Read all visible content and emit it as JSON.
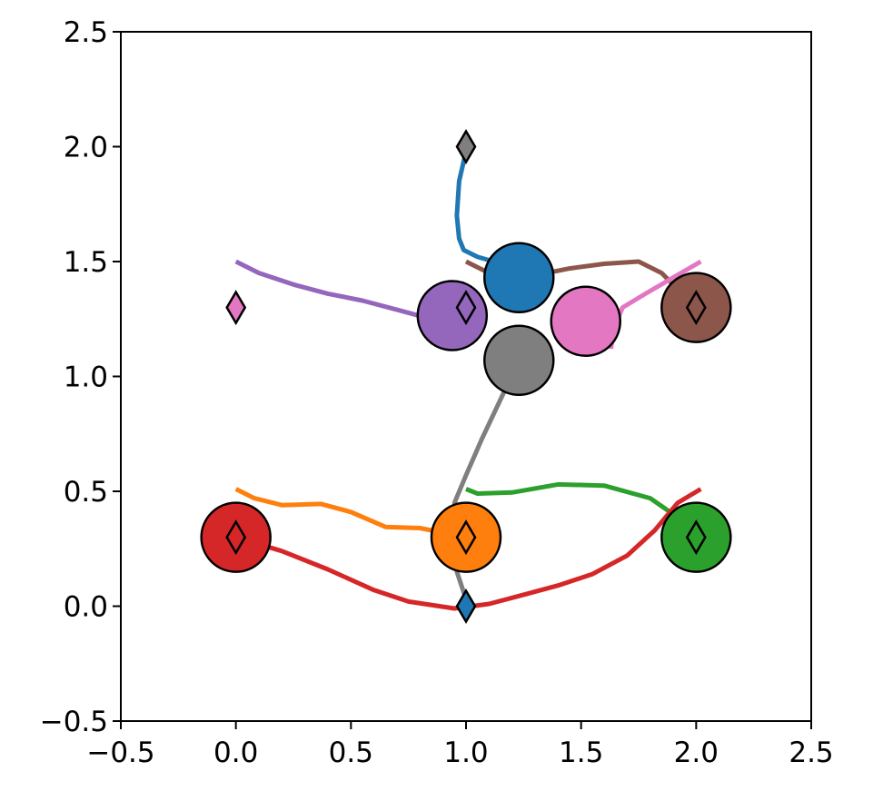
{
  "chart_data": {
    "type": "scatter",
    "title": "",
    "xlabel": "",
    "ylabel": "",
    "xlim": [
      -0.5,
      2.5
    ],
    "ylim": [
      -0.5,
      2.5
    ],
    "x_ticks": [
      -0.5,
      0.0,
      0.5,
      1.0,
      1.5,
      2.0,
      2.5
    ],
    "y_ticks": [
      -0.5,
      0.0,
      0.5,
      1.0,
      1.5,
      2.0,
      2.5
    ],
    "x_tick_labels": [
      "−0.5",
      "0.0",
      "0.5",
      "1.0",
      "1.5",
      "2.0",
      "2.5"
    ],
    "y_tick_labels": [
      "−0.5",
      "0.0",
      "0.5",
      "1.0",
      "1.5",
      "2.0",
      "2.5"
    ],
    "grid": false,
    "agent_radius": 0.15,
    "series": [
      {
        "color": "#1f77b4",
        "trajectory": [
          [
            1.0,
            1.98
          ],
          [
            0.97,
            1.85
          ],
          [
            0.96,
            1.7
          ],
          [
            0.97,
            1.6
          ],
          [
            0.99,
            1.55
          ],
          [
            1.05,
            1.52
          ],
          [
            1.12,
            1.5
          ],
          [
            1.23,
            1.43
          ]
        ],
        "agent": [
          1.23,
          1.43
        ],
        "goal": [
          1.0,
          0.0
        ]
      },
      {
        "color": "#ff7f0e",
        "trajectory": [
          [
            0.0,
            0.51
          ],
          [
            0.08,
            0.47
          ],
          [
            0.2,
            0.44
          ],
          [
            0.37,
            0.445
          ],
          [
            0.5,
            0.41
          ],
          [
            0.65,
            0.345
          ],
          [
            0.8,
            0.34
          ],
          [
            1.0,
            0.3
          ]
        ],
        "agent": [
          1.0,
          0.3
        ],
        "goal": [
          1.0,
          0.3
        ]
      },
      {
        "color": "#2ca02c",
        "trajectory": [
          [
            1.0,
            0.51
          ],
          [
            1.05,
            0.49
          ],
          [
            1.2,
            0.495
          ],
          [
            1.4,
            0.53
          ],
          [
            1.6,
            0.525
          ],
          [
            1.8,
            0.47
          ],
          [
            1.93,
            0.38
          ],
          [
            2.0,
            0.3
          ]
        ],
        "agent": [
          2.0,
          0.3
        ],
        "goal": [
          2.0,
          0.3
        ]
      },
      {
        "color": "#d62728",
        "trajectory": [
          [
            0.0,
            0.3
          ],
          [
            0.2,
            0.24
          ],
          [
            0.4,
            0.16
          ],
          [
            0.6,
            0.07
          ],
          [
            0.75,
            0.02
          ],
          [
            0.95,
            -0.01
          ],
          [
            1.1,
            0.01
          ],
          [
            1.25,
            0.05
          ],
          [
            1.4,
            0.09
          ],
          [
            1.55,
            0.14
          ],
          [
            1.7,
            0.22
          ],
          [
            1.82,
            0.33
          ],
          [
            1.92,
            0.45
          ],
          [
            2.02,
            0.51
          ]
        ],
        "agent": [
          0.0,
          0.3
        ],
        "goal": [
          0.0,
          0.3
        ]
      },
      {
        "color": "#9467bd",
        "trajectory": [
          [
            0.0,
            1.5
          ],
          [
            0.1,
            1.45
          ],
          [
            0.25,
            1.4
          ],
          [
            0.4,
            1.36
          ],
          [
            0.55,
            1.33
          ],
          [
            0.7,
            1.29
          ],
          [
            0.85,
            1.25
          ],
          [
            0.94,
            1.265
          ]
        ],
        "agent": [
          0.94,
          1.265
        ],
        "goal": [
          1.0,
          1.3
        ]
      },
      {
        "color": "#8c564b",
        "trajectory": [
          [
            1.0,
            1.5
          ],
          [
            1.1,
            1.45
          ],
          [
            1.3,
            1.44
          ],
          [
            1.45,
            1.47
          ],
          [
            1.6,
            1.49
          ],
          [
            1.75,
            1.5
          ],
          [
            1.85,
            1.45
          ],
          [
            1.9,
            1.4
          ],
          [
            2.0,
            1.3
          ]
        ],
        "agent": [
          2.0,
          1.3
        ],
        "goal": [
          2.0,
          1.3
        ]
      },
      {
        "color": "#e377c2",
        "trajectory": [
          [
            2.02,
            1.5
          ],
          [
            1.9,
            1.43
          ],
          [
            1.78,
            1.36
          ],
          [
            1.68,
            1.3
          ],
          [
            1.64,
            1.2
          ],
          [
            1.63,
            1.12
          ]
        ],
        "agent": [
          1.52,
          1.24
        ],
        "goal": [
          0.0,
          1.3
        ]
      },
      {
        "color": "#7f7f7f",
        "trajectory": [
          [
            1.23,
            1.07
          ],
          [
            1.15,
            0.9
          ],
          [
            1.07,
            0.73
          ],
          [
            1.0,
            0.57
          ],
          [
            0.95,
            0.45
          ],
          [
            0.95,
            0.25
          ],
          [
            0.96,
            0.15
          ],
          [
            1.0,
            0.03
          ]
        ],
        "agent": [
          1.23,
          1.07
        ],
        "goal": [
          1.0,
          2.0
        ]
      }
    ]
  }
}
